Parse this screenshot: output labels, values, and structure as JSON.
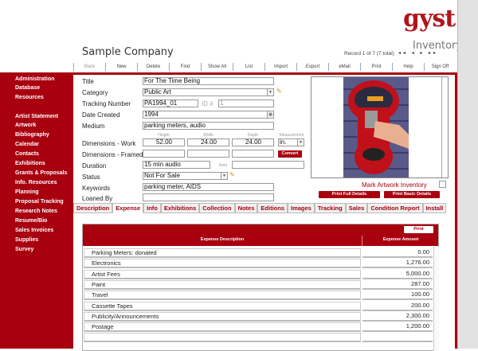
{
  "header": {
    "logo": "gyst",
    "module": "Inventory",
    "company": "Sample Company",
    "record_status": "Record 1 of 7 (7 total)",
    "nav_arrows": "◂◂ ◂ ▸ ▸▸"
  },
  "toolbar": [
    "Back",
    "New",
    "Delete",
    "Find",
    "Show All",
    "List",
    "Import",
    "Export",
    "eMail",
    "Print",
    "Help",
    "Sign Off"
  ],
  "sidebar": {
    "items": [
      "Administration",
      "Database",
      "Resources",
      "Artist Statement",
      "Artwork",
      "Bibliography",
      "Calendar",
      "Contacts",
      "Exhibitions",
      "Grants & Proposals",
      "Info. Resources",
      "Planning",
      "Proposal Tracking",
      "Research Notes",
      "Resume/Bio",
      "Sales Invoices",
      "Supplies",
      "Survey"
    ],
    "current": [
      "Database",
      "Artwork"
    ]
  },
  "form": {
    "title_label": "Title",
    "title": "For The Time Being",
    "category_label": "Category",
    "category": "Public Art",
    "tracking_label": "Tracking Number",
    "tracking": "PA1994_01",
    "id_label": "ID #",
    "id": "1",
    "date_label": "Date Created",
    "date": "1994",
    "medium_label": "Medium",
    "medium": "parking meters, audio",
    "height_label": "Height",
    "width_label": "Width",
    "depth_label": "Depth",
    "measurement_label": "Measurement",
    "dim_work_label": "Dimensions - Work",
    "height": "52.00",
    "width": "24.00",
    "depth": "24.00",
    "measurement": "in.",
    "dim_framed_label": "Dimensions - Framed",
    "convert": "Convert",
    "duration_label": "Duration",
    "duration": "15 min audio",
    "note_label": "Note",
    "note": "",
    "status_label": "Status",
    "status": "Not For Sale",
    "keywords_label": "Keywords",
    "keywords": "parking meter, AIDS",
    "loaned_label": "Loaned By",
    "loaned": ""
  },
  "image_panel": {
    "mark_inventory": "Mark Artwork Inventory",
    "print_full": "Print Full Details",
    "print_basic": "Print Basic Details"
  },
  "tabs": [
    "Description",
    "Expense",
    "Info",
    "Exhibitions",
    "Collection",
    "Notes",
    "Editions",
    "Images",
    "Tracking",
    "Sales",
    "Condition Report",
    "Install"
  ],
  "active_tab": "Expense",
  "expense": {
    "print": "Print",
    "col_desc": "Expense Description",
    "col_amount": "Expense Amount",
    "rows": [
      [
        "Parking Meters: donated",
        "0.00"
      ],
      [
        "Electronics",
        "1,276.00"
      ],
      [
        "Artist Fees",
        "5,000.00"
      ],
      [
        "Paint",
        "287.00"
      ],
      [
        "Travel",
        "100.00"
      ],
      [
        "Cassette Tapes",
        "200.00"
      ],
      [
        "Publicity/Announcements",
        "2,300.00"
      ],
      [
        "Postage",
        "1,200.00"
      ],
      [
        "",
        ""
      ]
    ]
  },
  "colors": {
    "brand": "#a8000f"
  }
}
